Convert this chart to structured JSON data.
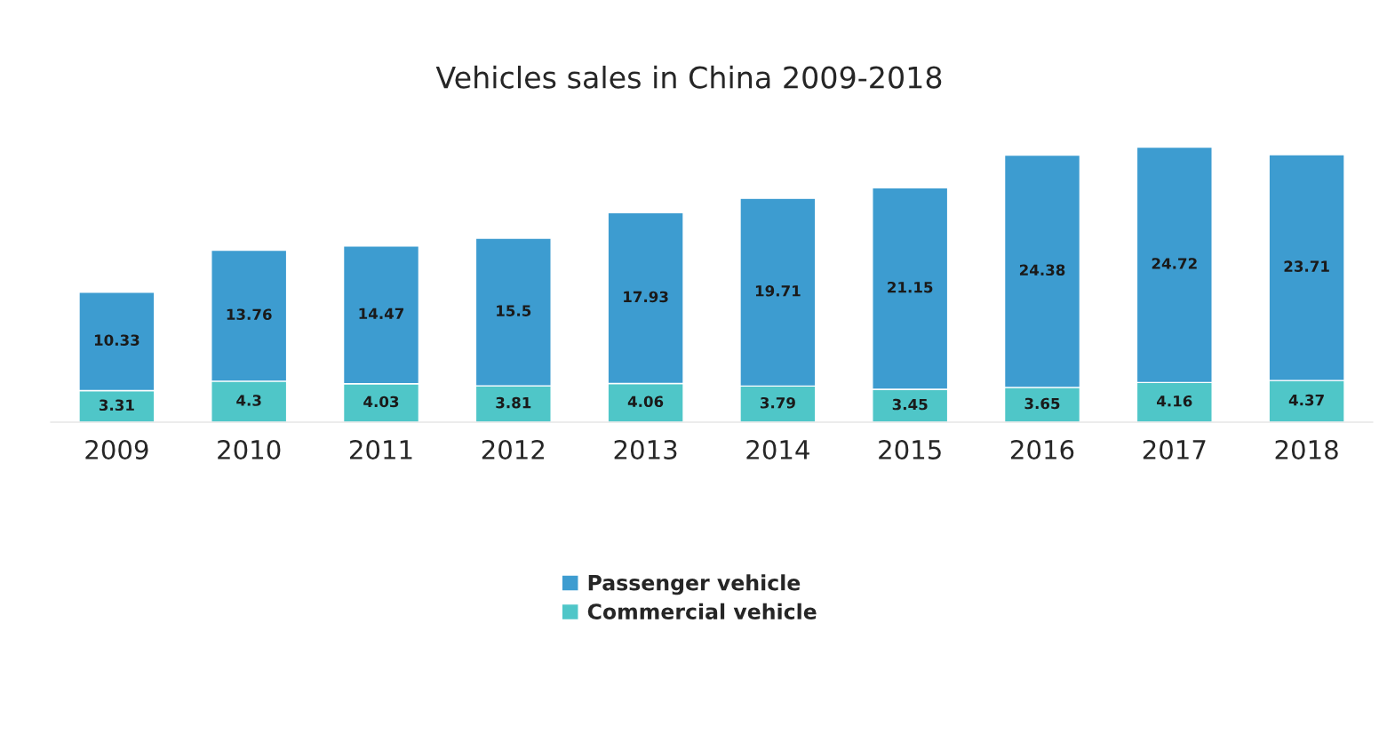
{
  "chart_data": {
    "type": "bar",
    "title": "Vehicles sales in China 2009-2018",
    "stacked": true,
    "data_labels": true,
    "legend": "bottom",
    "grid": false,
    "categories": [
      "2009",
      "2010",
      "2011",
      "2012",
      "2013",
      "2014",
      "2015",
      "2016",
      "2017",
      "2018"
    ],
    "series": [
      {
        "name": "Commercial vehicle",
        "color": "#4fc6c8",
        "values": [
          3.31,
          4.3,
          4.03,
          3.81,
          4.06,
          3.79,
          3.45,
          3.65,
          4.16,
          4.37
        ]
      },
      {
        "name": "Passenger vehicle",
        "color": "#3d9cd0",
        "values": [
          10.33,
          13.76,
          14.47,
          15.5,
          17.93,
          19.71,
          21.15,
          24.38,
          24.72,
          23.71
        ]
      }
    ]
  }
}
